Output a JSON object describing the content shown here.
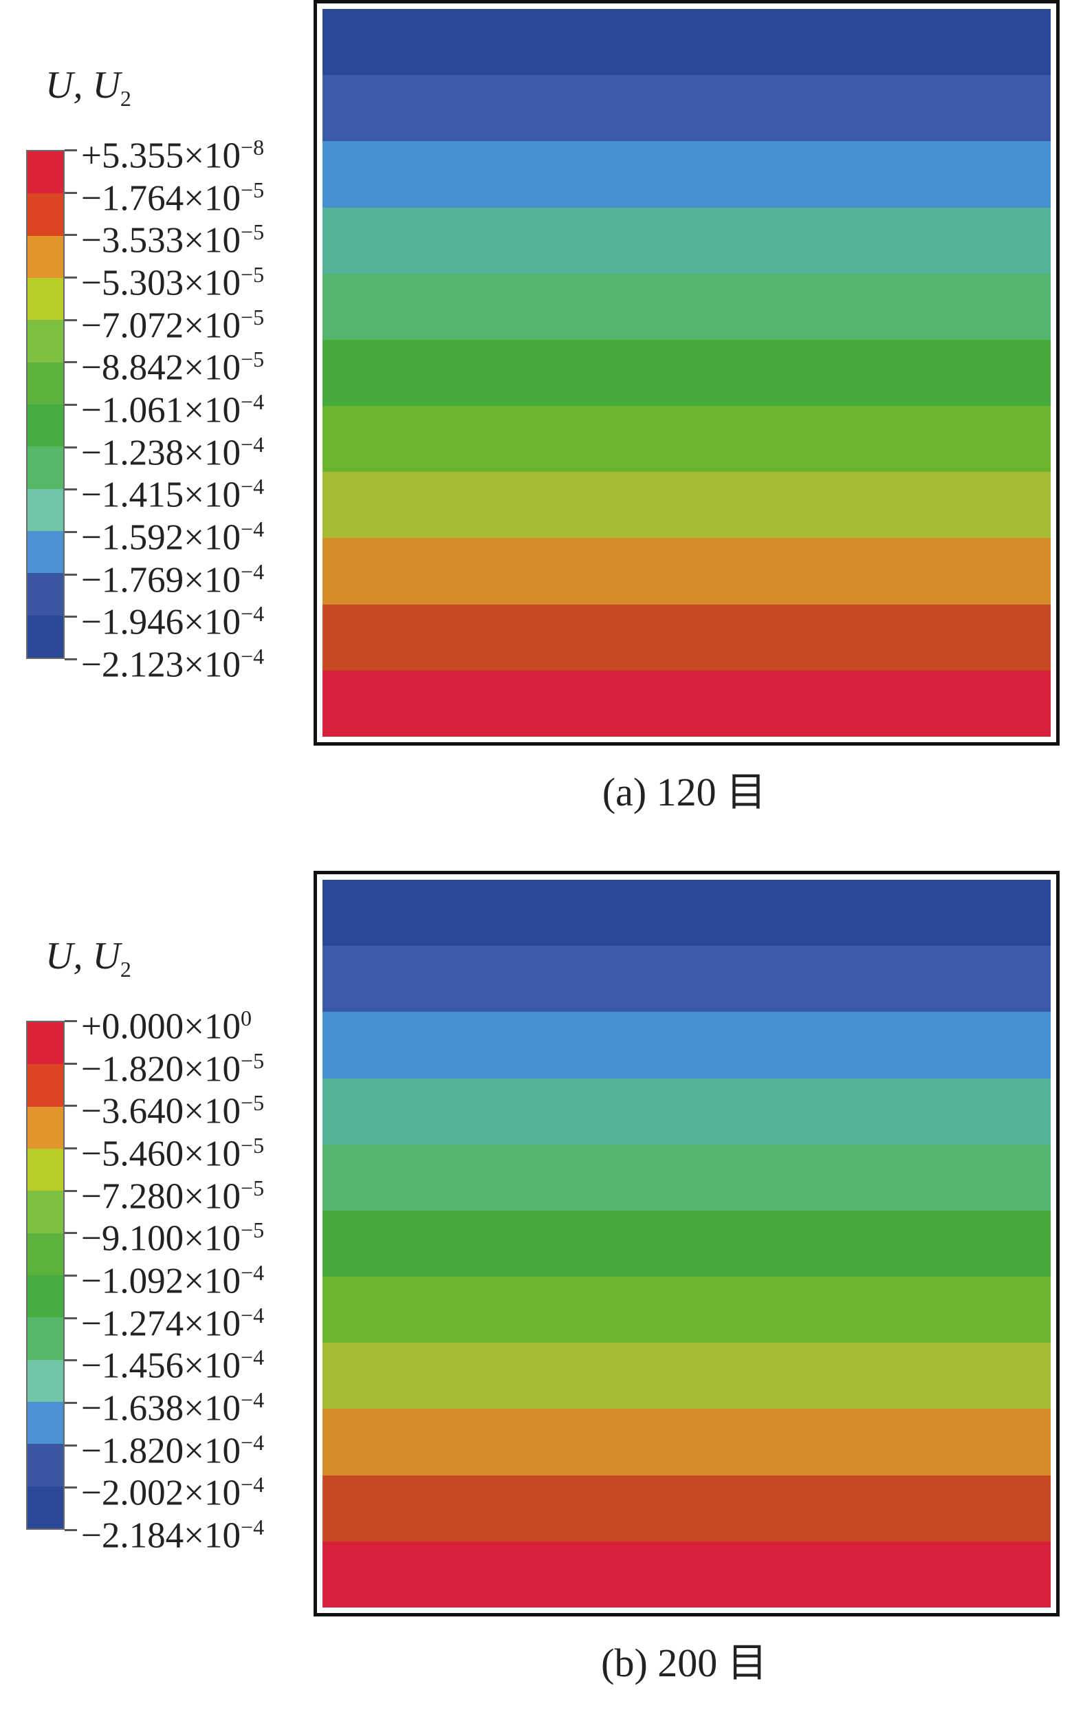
{
  "figures": [
    {
      "legend_title": "U, U",
      "legend_title_sub": "2",
      "legend_labels": [
        {
          "mant": "+5.355×10",
          "exp": "−8"
        },
        {
          "mant": "−1.764×10",
          "exp": "−5"
        },
        {
          "mant": "−3.533×10",
          "exp": "−5"
        },
        {
          "mant": "−5.303×10",
          "exp": "−5"
        },
        {
          "mant": "−7.072×10",
          "exp": "−5"
        },
        {
          "mant": "−8.842×10",
          "exp": "−5"
        },
        {
          "mant": "−1.061×10",
          "exp": "−4"
        },
        {
          "mant": "−1.238×10",
          "exp": "−4"
        },
        {
          "mant": "−1.415×10",
          "exp": "−4"
        },
        {
          "mant": "−1.592×10",
          "exp": "−4"
        },
        {
          "mant": "−1.769×10",
          "exp": "−4"
        },
        {
          "mant": "−1.946×10",
          "exp": "−4"
        },
        {
          "mant": "−2.123×10",
          "exp": "−4"
        }
      ],
      "caption": "(a) 120 目"
    },
    {
      "legend_title": "U, U",
      "legend_title_sub": "2",
      "legend_labels": [
        {
          "mant": "+0.000×10",
          "exp": "0"
        },
        {
          "mant": "−1.820×10",
          "exp": "−5"
        },
        {
          "mant": "−3.640×10",
          "exp": "−5"
        },
        {
          "mant": "−5.460×10",
          "exp": "−5"
        },
        {
          "mant": "−7.280×10",
          "exp": "−5"
        },
        {
          "mant": "−9.100×10",
          "exp": "−5"
        },
        {
          "mant": "−1.092×10",
          "exp": "−4"
        },
        {
          "mant": "−1.274×10",
          "exp": "−4"
        },
        {
          "mant": "−1.456×10",
          "exp": "−4"
        },
        {
          "mant": "−1.638×10",
          "exp": "−4"
        },
        {
          "mant": "−1.820×10",
          "exp": "−4"
        },
        {
          "mant": "−2.002×10",
          "exp": "−4"
        },
        {
          "mant": "−2.184×10",
          "exp": "−4"
        }
      ],
      "caption": "(b) 200 目"
    }
  ],
  "colorbar_colors": [
    "#dc2338",
    "#dc4522",
    "#e0962c",
    "#b8cc2a",
    "#7ec040",
    "#5cb23c",
    "#46ad40",
    "#56b868",
    "#6ec6a6",
    "#4a92d2",
    "#3a56a0",
    "#2b4897"
  ],
  "contour_colors": [
    "#2a4897",
    "#3b5aa8",
    "#4591cf",
    "#56b298",
    "#53b46b",
    "#45a93b",
    "#6bb52e",
    "#a5bc35",
    "#d48b2a",
    "#c84a25",
    "#d7213a"
  ]
}
